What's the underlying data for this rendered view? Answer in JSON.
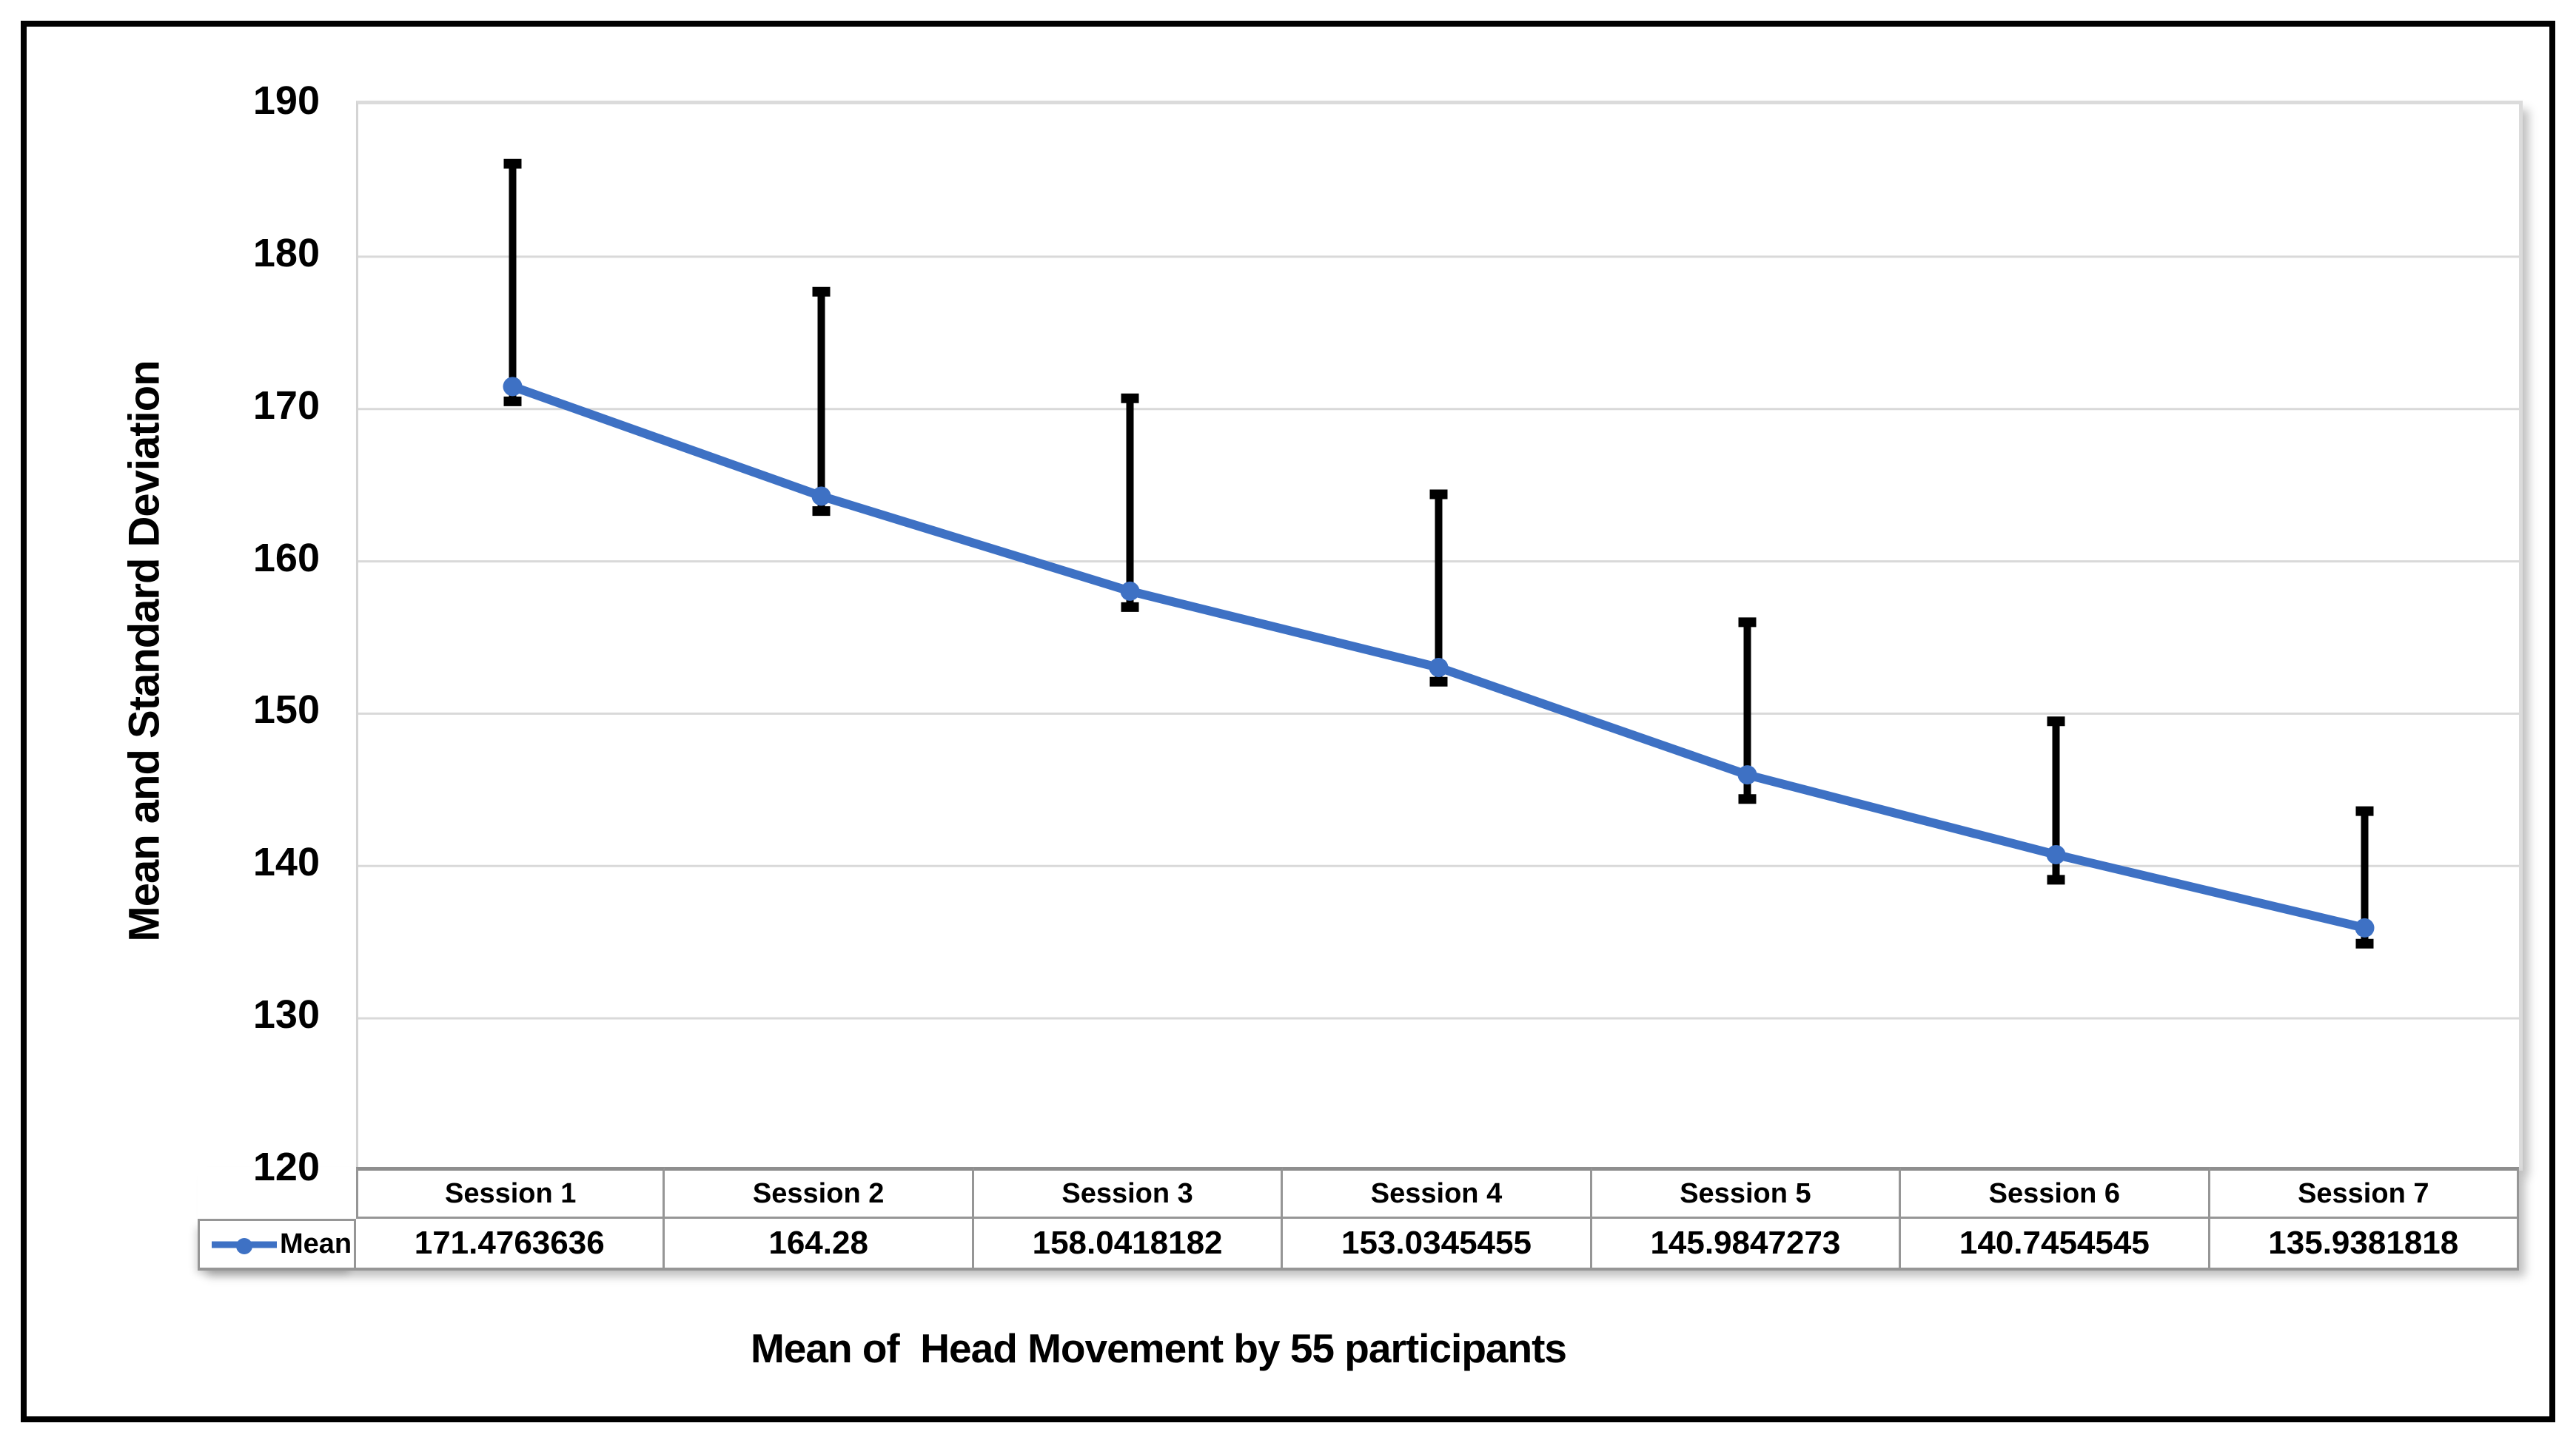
{
  "y_axis": {
    "title": "Mean and Standard Deviation",
    "ticks": [
      190,
      180,
      170,
      160,
      150,
      140,
      130,
      120
    ]
  },
  "x_axis": {
    "title": "Mean of  Head Movement by 55 participants"
  },
  "legend": {
    "label": "Mean"
  },
  "chart_data": {
    "type": "line",
    "title": "",
    "xlabel": "Mean of  Head Movement by 55 participants",
    "ylabel": "Mean and Standard Deviation",
    "categories": [
      "Session 1",
      "Session 2",
      "Session 3",
      "Session 4",
      "Session 5",
      "Session 6",
      "Session 7"
    ],
    "series": [
      {
        "name": "Mean",
        "values": [
          171.4763636,
          164.28,
          158.0418182,
          153.0345455,
          145.9847273,
          140.7454545,
          135.9381818
        ],
        "display_values": [
          "171.4763636",
          "164.28",
          "158.0418182",
          "153.0345455",
          "145.9847273",
          "140.7454545",
          "135.9381818"
        ]
      }
    ],
    "error_bars": {
      "upper": [
        186.1,
        177.7,
        170.7,
        164.4,
        156.0,
        149.5,
        143.6
      ],
      "lower": [
        170.5,
        163.3,
        157.0,
        152.1,
        144.4,
        139.1,
        134.9
      ]
    },
    "ylim": [
      120,
      190
    ],
    "ytick_step": 10,
    "grid": true,
    "legend_position": "data-table-left",
    "colors": {
      "line": "#3E71C4",
      "marker": "#3E71C4",
      "error_bar": "#000000",
      "gridline": "#D9D9D9",
      "plot_border": "#DBDBDB",
      "table_border": "#969696",
      "text": "#000000",
      "frame": "#000000"
    }
  }
}
